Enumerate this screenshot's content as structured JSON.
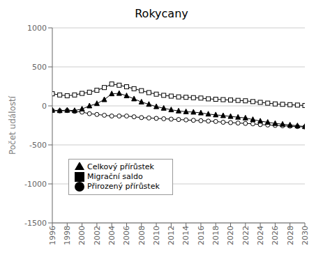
{
  "chart_data": {
    "type": "line",
    "title": "Rokycany",
    "ylabel": "Počet událostí",
    "x": [
      1996,
      1997,
      1998,
      1999,
      2000,
      2001,
      2002,
      2003,
      2004,
      2005,
      2006,
      2007,
      2008,
      2009,
      2010,
      2011,
      2012,
      2013,
      2014,
      2015,
      2016,
      2017,
      2018,
      2019,
      2020,
      2021,
      2022,
      2023,
      2024,
      2025,
      2026,
      2027,
      2028,
      2029,
      2030
    ],
    "series": [
      {
        "name": "Přirozený přírůstek",
        "color": "#000000",
        "marker": "circle_open",
        "values": [
          -60,
          -65,
          -60,
          -70,
          -80,
          -100,
          -110,
          -120,
          -130,
          -130,
          -130,
          -140,
          -150,
          -155,
          -160,
          -165,
          -170,
          -175,
          -180,
          -185,
          -190,
          -195,
          -200,
          -210,
          -215,
          -220,
          -225,
          -230,
          -240,
          -245,
          -250,
          -255,
          -260,
          -265,
          -270
        ]
      },
      {
        "name": "Migrační saldo",
        "color": "#000000",
        "marker": "square_open",
        "values": [
          155,
          140,
          130,
          140,
          160,
          175,
          200,
          235,
          280,
          265,
          245,
          220,
          195,
          170,
          150,
          135,
          125,
          115,
          110,
          105,
          100,
          90,
          85,
          80,
          75,
          70,
          65,
          55,
          45,
          35,
          25,
          20,
          15,
          10,
          5
        ]
      },
      {
        "name": "Celkový přírůstek",
        "color": "#000000",
        "marker": "triangle",
        "values": [
          -55,
          -60,
          -55,
          -60,
          -40,
          0,
          30,
          80,
          155,
          160,
          130,
          90,
          50,
          20,
          -10,
          -30,
          -50,
          -65,
          -75,
          -80,
          -90,
          -105,
          -115,
          -125,
          -135,
          -145,
          -155,
          -175,
          -195,
          -210,
          -225,
          -235,
          -245,
          -255,
          -265
        ]
      }
    ],
    "xlim": [
      1996,
      2030
    ],
    "xticks": [
      1996,
      1998,
      2000,
      2002,
      2004,
      2006,
      2008,
      2010,
      2012,
      2014,
      2016,
      2018,
      2020,
      2022,
      2024,
      2026,
      2028,
      2030
    ],
    "ylim": [
      -1500,
      1000
    ],
    "yticks": [
      -1500,
      -1000,
      -500,
      0,
      500,
      1000
    ],
    "grid": "y",
    "legend": "lower left"
  }
}
